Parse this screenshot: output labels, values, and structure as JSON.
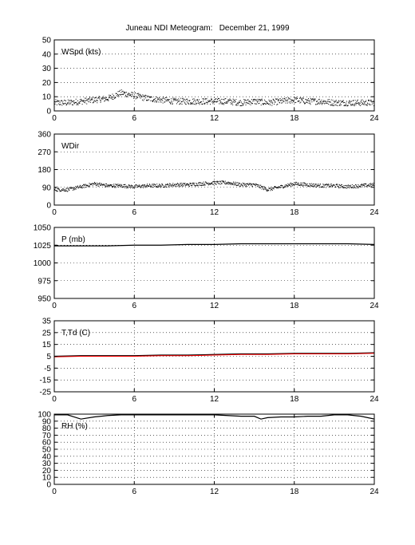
{
  "title": "Juneau NDI Meteogram:   December 21, 1999",
  "chart_data": [
    {
      "type": "scatter",
      "label": "WSpd (kts)",
      "xlim": [
        0,
        24
      ],
      "ylim": [
        0,
        50
      ],
      "xticks": [
        0,
        6,
        12,
        18,
        24
      ],
      "yticks": [
        0,
        10,
        20,
        30,
        40,
        50
      ],
      "grid": true,
      "color": "#000000",
      "series": [
        {
          "x": [
            0,
            1,
            2,
            3,
            4,
            5,
            6,
            7,
            8,
            9,
            10,
            11,
            12,
            13,
            14,
            15,
            16,
            17,
            18,
            19,
            20,
            21,
            22,
            23,
            24
          ],
          "values": [
            6,
            6,
            7,
            8,
            9,
            13,
            11,
            9,
            8,
            7,
            7,
            7,
            7,
            7,
            6,
            7,
            6,
            7,
            8,
            7,
            7,
            6,
            6,
            6,
            6
          ]
        }
      ]
    },
    {
      "type": "scatter",
      "label": "WDir",
      "xlim": [
        0,
        24
      ],
      "ylim": [
        0,
        360
      ],
      "xticks": [
        0,
        6,
        12,
        18,
        24
      ],
      "yticks": [
        0,
        90,
        180,
        270,
        360
      ],
      "grid": true,
      "color": "#000000",
      "series": [
        {
          "x": [
            0,
            1,
            2,
            3,
            4,
            5,
            6,
            7,
            8,
            9,
            10,
            11,
            12,
            13,
            14,
            15,
            16,
            17,
            18,
            19,
            20,
            21,
            22,
            23,
            24
          ],
          "values": [
            80,
            80,
            95,
            110,
            100,
            100,
            95,
            100,
            100,
            105,
            105,
            110,
            115,
            115,
            105,
            105,
            80,
            95,
            110,
            105,
            100,
            100,
            95,
            100,
            105
          ]
        }
      ]
    },
    {
      "type": "line",
      "label": "P (mb)",
      "xlim": [
        0,
        24
      ],
      "ylim": [
        950,
        1050
      ],
      "xticks": [
        0,
        6,
        12,
        18,
        24
      ],
      "yticks": [
        950,
        975,
        1000,
        1025,
        1050
      ],
      "grid": true,
      "color": "#000000",
      "series": [
        {
          "x": [
            0,
            2,
            4,
            6,
            8,
            10,
            12,
            14,
            16,
            18,
            20,
            22,
            24
          ],
          "values": [
            1024,
            1024,
            1024,
            1025,
            1025,
            1026,
            1026,
            1027,
            1027,
            1027,
            1027,
            1027,
            1026
          ]
        }
      ]
    },
    {
      "type": "line",
      "label": "T,Td (C)",
      "xlim": [
        0,
        24
      ],
      "ylim": [
        -25,
        35
      ],
      "xticks": [
        0,
        6,
        12,
        18,
        24
      ],
      "yticks": [
        -25,
        -15,
        -5,
        5,
        15,
        25,
        35
      ],
      "grid": true,
      "series": [
        {
          "color": "#000000",
          "x": [
            0,
            2,
            4,
            6,
            8,
            10,
            12,
            14,
            16,
            18,
            20,
            22,
            24
          ],
          "values": [
            5,
            5.5,
            5.5,
            5.5,
            6,
            6,
            6.5,
            7,
            7,
            7.5,
            7.5,
            7.5,
            8
          ]
        },
        {
          "color": "#ff0000",
          "x": [
            0,
            2,
            4,
            6,
            8,
            10,
            12,
            14,
            16,
            18,
            20,
            22,
            24
          ],
          "values": [
            4.5,
            5,
            5,
            5,
            5.5,
            5.5,
            6,
            6.5,
            6.5,
            7,
            7,
            7,
            7.5
          ]
        }
      ]
    },
    {
      "type": "line",
      "label": "RH (%)",
      "xlim": [
        0,
        24
      ],
      "ylim": [
        0,
        100
      ],
      "xticks": [
        0,
        6,
        12,
        18,
        24
      ],
      "yticks": [
        0,
        10,
        20,
        30,
        40,
        50,
        60,
        70,
        80,
        90,
        100
      ],
      "grid": true,
      "color": "#000000",
      "series": [
        {
          "x": [
            0,
            1,
            1.5,
            2,
            3,
            4,
            5,
            6,
            8,
            10,
            12,
            14,
            15,
            15.5,
            16,
            17,
            18,
            19,
            20,
            21,
            22,
            23,
            24
          ],
          "values": [
            99,
            99,
            96,
            93,
            96,
            98,
            99,
            99,
            99,
            99,
            99,
            97,
            97,
            93,
            95,
            96,
            96,
            97,
            97,
            99,
            99,
            97,
            93
          ]
        }
      ]
    }
  ]
}
